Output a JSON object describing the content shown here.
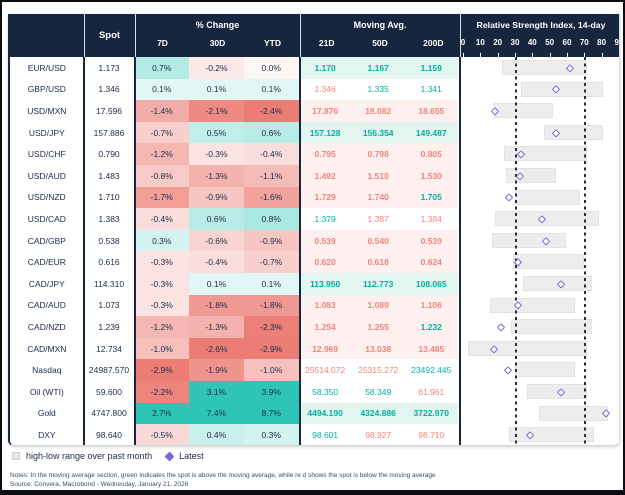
{
  "header": {
    "spot_label": "Spot",
    "pct_change_label": "% Change",
    "pct_cols": [
      "7D",
      "30D",
      "YTD"
    ],
    "ma_label": "Moving Avg.",
    "ma_cols": [
      "21D",
      "50D",
      "200D"
    ],
    "rsi_label": "Relative Strength Index, 14-day",
    "rsi_ticks": [
      0,
      10,
      20,
      30,
      40,
      50,
      60,
      70,
      80,
      90
    ]
  },
  "chart_data": {
    "type": "table",
    "rsi_subchart": {
      "type": "range-bar-with-marker",
      "xlim": [
        0,
        90
      ],
      "ticks": [
        0,
        10,
        20,
        30,
        40,
        50,
        60,
        70,
        80,
        90
      ],
      "reference_lines": [
        30,
        70
      ],
      "range_meaning": "high-low range over past month",
      "marker_meaning": "Latest"
    },
    "rows": [
      {
        "name": "EUR/USD",
        "spot": "1.173",
        "pct": [
          "0.7%",
          "-0.2%",
          "0.0%"
        ],
        "ma": [
          "1.170",
          "1.167",
          "1.159"
        ],
        "ma_tint": "teal",
        "rsi": {
          "low": 24,
          "high": 73,
          "latest": 63
        }
      },
      {
        "name": "GBP/USD",
        "spot": "1.346",
        "pct": [
          "0.1%",
          "0.1%",
          "0.1%"
        ],
        "ma": [
          "1.346",
          "1.335",
          "1.341"
        ],
        "ma_tint": "none",
        "rsi": {
          "low": 35,
          "high": 82,
          "latest": 55
        }
      },
      {
        "name": "USD/MXN",
        "spot": "17.596",
        "pct": [
          "-1.4%",
          "-2.1%",
          "-2.4%"
        ],
        "ma": [
          "17.876",
          "18.082",
          "18.655"
        ],
        "ma_tint": "pink",
        "rsi": {
          "low": 19,
          "high": 53,
          "latest": 20
        }
      },
      {
        "name": "USD/JPY",
        "spot": "157.886",
        "pct": [
          "-0.7%",
          "0.5%",
          "0.6%"
        ],
        "ma": [
          "157.128",
          "156.354",
          "149.487"
        ],
        "ma_tint": "teal",
        "rsi": {
          "low": 48,
          "high": 82,
          "latest": 55
        }
      },
      {
        "name": "USD/CHF",
        "spot": "0.790",
        "pct": [
          "-1.2%",
          "-0.3%",
          "-0.4%"
        ],
        "ma": [
          "0.795",
          "0.798",
          "0.805"
        ],
        "ma_tint": "pink",
        "rsi": {
          "low": 25,
          "high": 73,
          "latest": 35
        }
      },
      {
        "name": "USD/AUD",
        "spot": "1.483",
        "pct": [
          "-0.8%",
          "-1.3%",
          "-1.1%"
        ],
        "ma": [
          "1.492",
          "1.510",
          "1.530"
        ],
        "ma_tint": "pink",
        "rsi": {
          "low": 26,
          "high": 55,
          "latest": 34
        }
      },
      {
        "name": "USD/NZD",
        "spot": "1.710",
        "pct": [
          "-1.7%",
          "-0.9%",
          "-1.6%"
        ],
        "ma": [
          "1.729",
          "1.740",
          "1.705"
        ],
        "ma_tint": "pink",
        "rsi": {
          "low": 31,
          "high": 69,
          "latest": 28
        }
      },
      {
        "name": "USD/CAD",
        "spot": "1.383",
        "pct": [
          "-0.4%",
          "0.6%",
          "0.8%"
        ],
        "ma": [
          "1.379",
          "1.387",
          "1.384"
        ],
        "ma_tint": "none",
        "rsi": {
          "low": 20,
          "high": 80,
          "latest": 47
        }
      },
      {
        "name": "CAD/GBP",
        "spot": "0.538",
        "pct": [
          "0.3%",
          "-0.6%",
          "-0.9%"
        ],
        "ma": [
          "0.539",
          "0.540",
          "0.539"
        ],
        "ma_tint": "pink",
        "rsi": {
          "low": 18,
          "high": 61,
          "latest": 49
        }
      },
      {
        "name": "CAD/EUR",
        "spot": "0.616",
        "pct": [
          "-0.3%",
          "-0.4%",
          "-0.7%"
        ],
        "ma": [
          "0.620",
          "0.618",
          "0.624"
        ],
        "ma_tint": "pink",
        "rsi": {
          "low": 30,
          "high": 71,
          "latest": 33
        }
      },
      {
        "name": "CAD/JPY",
        "spot": "114.310",
        "pct": [
          "-0.3%",
          "0.1%",
          "0.1%"
        ],
        "ma": [
          "113.950",
          "112.773",
          "108.065"
        ],
        "ma_tint": "teal",
        "rsi": {
          "low": 36,
          "high": 76,
          "latest": 58
        }
      },
      {
        "name": "CAD/AUD",
        "spot": "1.073",
        "pct": [
          "-0.3%",
          "-1.8%",
          "-1.8%"
        ],
        "ma": [
          "1.083",
          "1.089",
          "1.106"
        ],
        "ma_tint": "pink",
        "rsi": {
          "low": 17,
          "high": 66,
          "latest": 33
        }
      },
      {
        "name": "CAD/NZD",
        "spot": "1.239",
        "pct": [
          "-1.2%",
          "-1.3%",
          "-2.3%"
        ],
        "ma": [
          "1.254",
          "1.255",
          "1.232"
        ],
        "ma_tint": "pink",
        "rsi": {
          "low": 29,
          "high": 76,
          "latest": 23
        }
      },
      {
        "name": "CAD/MXN",
        "spot": "12.734",
        "pct": [
          "-1.0%",
          "-2.6%",
          "-2.9%"
        ],
        "ma": [
          "12.969",
          "13.038",
          "13.485"
        ],
        "ma_tint": "pink",
        "rsi": {
          "low": 4,
          "high": 73,
          "latest": 19
        }
      },
      {
        "name": "Nasdaq",
        "spot": "24987.570",
        "pct": [
          "-2.9%",
          "-1.9%",
          "-1.0%"
        ],
        "ma": [
          "25514.072",
          "25315.272",
          "23492.445"
        ],
        "ma_tint": "none",
        "rsi": {
          "low": 31,
          "high": 66,
          "latest": 27
        }
      },
      {
        "name": "Oil (WTI)",
        "spot": "59.600",
        "pct": [
          "-2.2%",
          "3.1%",
          "3.9%"
        ],
        "ma": [
          "58.350",
          "58.349",
          "61.961"
        ],
        "ma_tint": "none",
        "rsi": {
          "low": 38,
          "high": 73,
          "latest": 58
        }
      },
      {
        "name": "Gold",
        "spot": "4747.800",
        "pct": [
          "2.7%",
          "7.4%",
          "8.7%"
        ],
        "ma": [
          "4494.190",
          "4324.886",
          "3722.970"
        ],
        "ma_tint": "teal",
        "rsi": {
          "low": 45,
          "high": 85,
          "latest": 84
        }
      },
      {
        "name": "DXY",
        "spot": "98.640",
        "pct": [
          "-0.5%",
          "0.4%",
          "0.3%"
        ],
        "ma": [
          "98.601",
          "98.927",
          "98.710"
        ],
        "ma_tint": "none",
        "rsi": {
          "low": 28,
          "high": 77,
          "latest": 40
        }
      }
    ]
  },
  "legend": {
    "range_label": "high-low range over past month",
    "latest_label": "Latest"
  },
  "footer": {
    "notes": "Notes: In the moving average section, green indicates the spot is above the moving average, while re  d shows the spot is below  the moving average",
    "source": "Source: Convera, Macrobond - Wednesday, January 21, 2026"
  },
  "colors": {
    "header_bg": "#16263e",
    "positive": "#2ec5b6",
    "negative": "#ec7d74",
    "ma_up_text": "#00b1a1",
    "ma_down_text": "#f2847c",
    "tint_teal": "#e2f5f1",
    "tint_pink": "#fdf0ee",
    "marker_purple": "#7668d8",
    "range_bar": "#ededed",
    "zero_cell": "#fdf6f5"
  }
}
